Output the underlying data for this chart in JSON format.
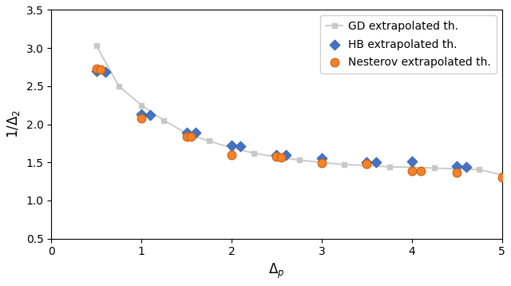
{
  "title": "",
  "xlabel": "$\\Delta_p$",
  "ylabel": "$1/\\Delta_2$",
  "xlim": [
    0,
    5
  ],
  "ylim": [
    0.5,
    3.5
  ],
  "xticks": [
    0,
    1,
    2,
    3,
    4,
    5
  ],
  "yticks": [
    0.5,
    1.0,
    1.5,
    2.0,
    2.5,
    3.0,
    3.5
  ],
  "gd_x": [
    0.5,
    0.75,
    1.0,
    1.25,
    1.5,
    1.75,
    2.0,
    2.25,
    2.5,
    2.75,
    3.0,
    3.25,
    3.5,
    3.75,
    4.0,
    4.25,
    4.5,
    4.75,
    5.0
  ],
  "gd_y": [
    3.03,
    2.5,
    2.25,
    2.05,
    1.88,
    1.78,
    1.69,
    1.62,
    1.57,
    1.53,
    1.5,
    1.47,
    1.46,
    1.44,
    1.435,
    1.425,
    1.415,
    1.405,
    1.335
  ],
  "hb_x": [
    0.5,
    0.6,
    1.0,
    1.1,
    1.5,
    1.6,
    2.0,
    2.1,
    2.5,
    2.6,
    3.0,
    3.5,
    3.6,
    4.0,
    4.5,
    4.6
  ],
  "hb_y": [
    2.695,
    2.685,
    2.135,
    2.125,
    1.895,
    1.885,
    1.72,
    1.715,
    1.6,
    1.595,
    1.555,
    1.505,
    1.498,
    1.51,
    1.445,
    1.44
  ],
  "nesterov_x": [
    0.5,
    0.55,
    1.0,
    1.5,
    1.55,
    2.0,
    2.5,
    2.55,
    3.0,
    3.5,
    4.0,
    4.1,
    4.5,
    5.0
  ],
  "nesterov_y": [
    2.73,
    2.72,
    2.08,
    1.84,
    1.835,
    1.595,
    1.575,
    1.57,
    1.495,
    1.48,
    1.39,
    1.385,
    1.365,
    1.305
  ],
  "gd_color": "#c8c8c8",
  "hb_color": "#4472c4",
  "hb_edge_color": "#2a5aa0",
  "nesterov_color": "#f5822a",
  "nesterov_edge_color": "#c86010",
  "gd_label": "GD extrapolated th.",
  "hb_label": "HB extrapolated th.",
  "nesterov_label": "Nesterov extrapolated th."
}
